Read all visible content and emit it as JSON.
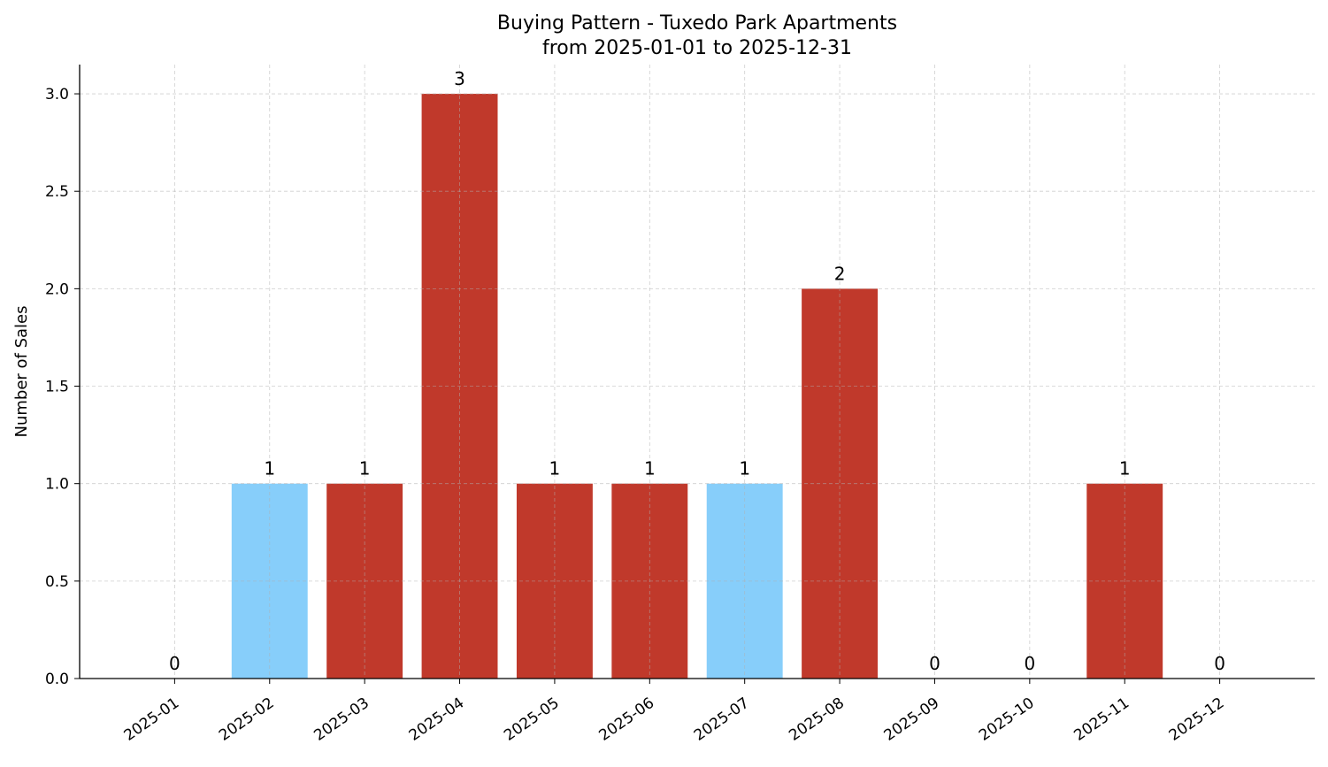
{
  "chart_data": {
    "type": "bar",
    "title": "Buying Pattern - Tuxedo Park Apartments",
    "subtitle": "from 2025-01-01 to 2025-12-31",
    "xlabel": "",
    "ylabel": "Number of Sales",
    "categories": [
      "2025-01",
      "2025-02",
      "2025-03",
      "2025-04",
      "2025-05",
      "2025-06",
      "2025-07",
      "2025-08",
      "2025-09",
      "2025-10",
      "2025-11",
      "2025-12"
    ],
    "values": [
      0,
      1,
      1,
      3,
      1,
      1,
      1,
      2,
      0,
      0,
      1,
      0
    ],
    "bar_colors": [
      "#c0392b",
      "#87cefa",
      "#c0392b",
      "#c0392b",
      "#c0392b",
      "#c0392b",
      "#87cefa",
      "#c0392b",
      "#c0392b",
      "#c0392b",
      "#c0392b",
      "#c0392b"
    ],
    "data_labels": [
      "0",
      "1",
      "1",
      "3",
      "1",
      "1",
      "1",
      "2",
      "0",
      "0",
      "1",
      "0"
    ],
    "ylim": [
      0,
      3.15
    ],
    "yticks": [
      "0.0",
      "0.5",
      "1.0",
      "1.5",
      "2.0",
      "2.5",
      "3.0"
    ],
    "grid": true,
    "legend": "none"
  }
}
